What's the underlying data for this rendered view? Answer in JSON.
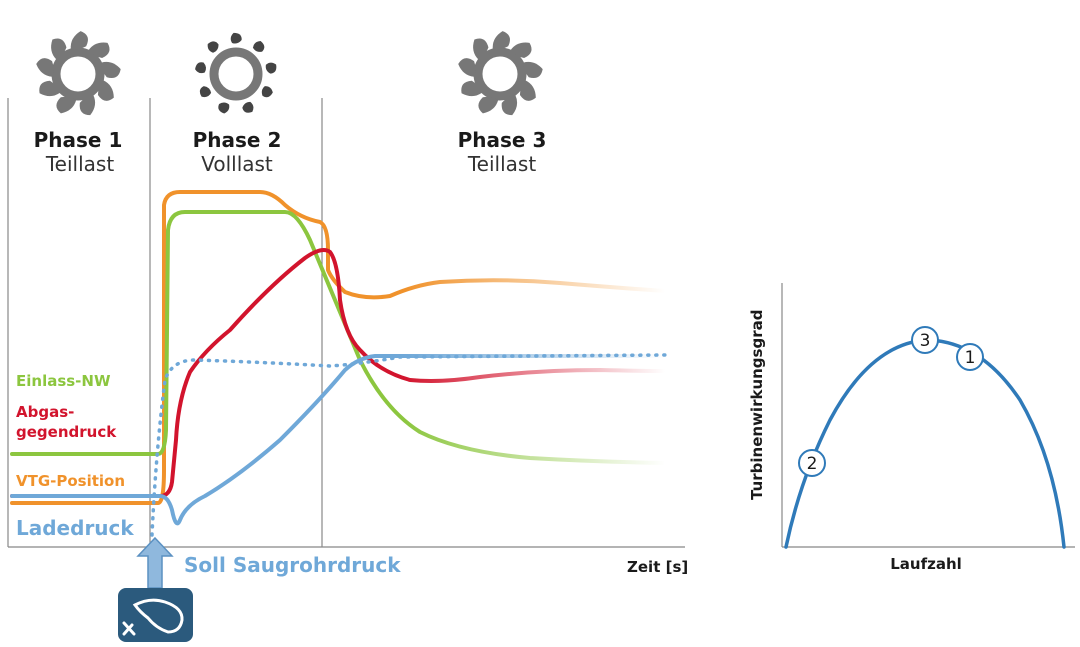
{
  "phases": [
    {
      "title": "Phase 1",
      "subtitle": "Teillast",
      "vane_state": "partially-open"
    },
    {
      "title": "Phase 2",
      "subtitle": "Volllast",
      "vane_state": "closed"
    },
    {
      "title": "Phase 3",
      "subtitle": "Teillast",
      "vane_state": "partially-open"
    }
  ],
  "legend": {
    "einlass": "Einlass-NW",
    "abgas_line1": "Abgas-",
    "abgas_line2": "gegendruck",
    "vtg": "VTG-Position",
    "ladedruck": "Ladedruck",
    "soll": "Soll Saugrohrdruck"
  },
  "axes": {
    "time_label": "Zeit [s]",
    "efficiency_ylabel": "Turbinenwirkungsgrad",
    "efficiency_xlabel": "Laufzahl"
  },
  "markers": [
    "2",
    "3",
    "1"
  ],
  "icons": {
    "turbine": "vtg-turbine-icon",
    "pedal": "accelerator-pedal-icon",
    "arrow": "up-arrow-icon"
  },
  "colors": {
    "einlass": "#8cc63f",
    "abgas": "#d2142d",
    "vtg": "#f0922b",
    "ladedruck": "#6fa8d8",
    "efficiency": "#2f7ab9",
    "gridline": "#888888",
    "icon_gray": "#777777",
    "pedal_bg": "#2b5a7d"
  }
}
